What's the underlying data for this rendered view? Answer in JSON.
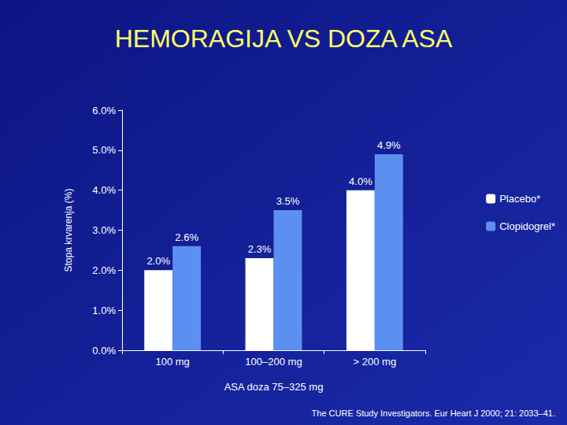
{
  "chart_data": {
    "type": "bar",
    "title": "HEMORAGIJA VS DOZA ASA",
    "x_label": "ASA doza 75–325 mg",
    "y_label": "Stopa krvarenja (%)",
    "categories": [
      "100 mg",
      "100–200 mg",
      "> 200 mg"
    ],
    "series": [
      {
        "name": "Placebo*",
        "color": "#ffffff",
        "values": [
          2.0,
          2.3,
          4.0
        ],
        "value_labels": [
          "2.0%",
          "2.3%",
          "4.0%"
        ]
      },
      {
        "name": "Clopidogrel*",
        "color": "#5b8ff0",
        "values": [
          2.6,
          3.5,
          4.9
        ],
        "value_labels": [
          "2.6%",
          "3.5%",
          "4.9%"
        ]
      }
    ],
    "ylim": [
      0,
      6
    ],
    "yticks": [
      {
        "value": 0,
        "label": "0.0%"
      },
      {
        "value": 1,
        "label": "1.0%"
      },
      {
        "value": 2,
        "label": "2.0%"
      },
      {
        "value": 3,
        "label": "3.0%"
      },
      {
        "value": 4,
        "label": "4.0%"
      },
      {
        "value": 5,
        "label": "5.0%"
      },
      {
        "value": 6,
        "label": "6.0%"
      }
    ],
    "data_labels": true,
    "legend": "right",
    "grid": false,
    "annotations": [
      "The CURE Study Investigators. Eur Heart J 2000; 21: 2033–41."
    ]
  }
}
